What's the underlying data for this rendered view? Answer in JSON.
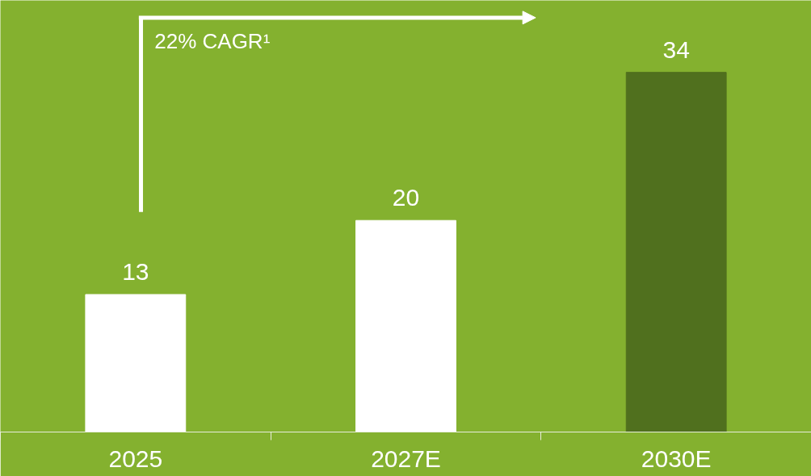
{
  "chart_data": {
    "type": "bar",
    "categories": [
      "2025",
      "2027E",
      "2030E"
    ],
    "values": [
      13,
      20,
      34
    ],
    "colors": [
      "#ffffff",
      "#ffffff",
      "#50701e"
    ],
    "data_labels": true,
    "grid": false,
    "tick_labels": "x",
    "annotations": [
      "22% CAGR¹"
    ]
  }
}
